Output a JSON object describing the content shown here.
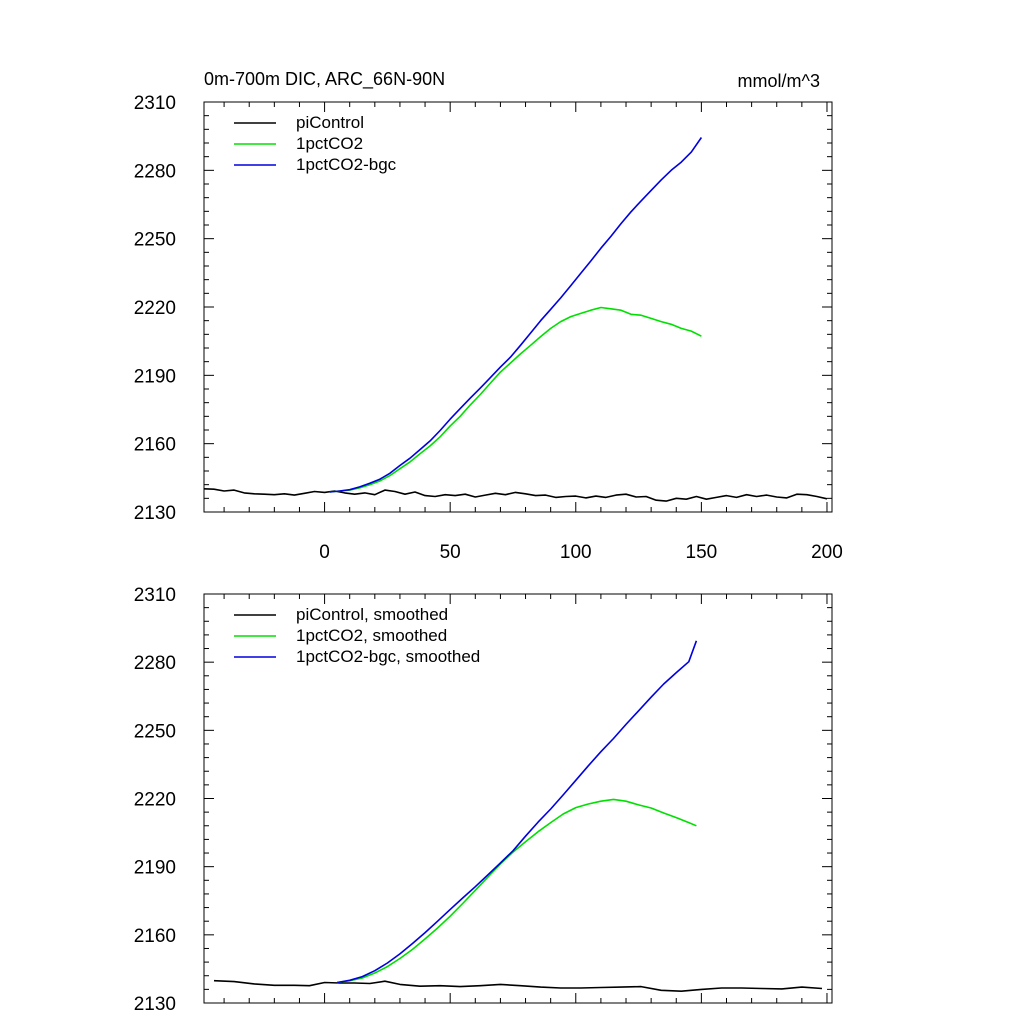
{
  "chart_data": [
    {
      "type": "line",
      "title": "0m-700m DIC, ARC_66N-90N",
      "units_label": "mmol/m^3",
      "xlim": [
        -48,
        202
      ],
      "ylim": [
        2130,
        2310
      ],
      "x_ticks": [
        0,
        50,
        100,
        150,
        200
      ],
      "x_tick_labels": [
        "0",
        "50",
        "100",
        "150",
        "200"
      ],
      "y_ticks": [
        2130,
        2160,
        2190,
        2220,
        2250,
        2280,
        2310
      ],
      "y_tick_labels": [
        "2130",
        "2160",
        "2190",
        "2220",
        "2250",
        "2280",
        "2310"
      ],
      "legend_position": "top-left",
      "series": [
        {
          "name": "piControl",
          "color": "#000000",
          "x": [
            -48,
            -44,
            -40,
            -36,
            -32,
            -28,
            -24,
            -20,
            -16,
            -12,
            -8,
            -4,
            0,
            4,
            8,
            12,
            16,
            20,
            24,
            28,
            32,
            36,
            40,
            44,
            48,
            52,
            56,
            60,
            64,
            68,
            72,
            76,
            80,
            84,
            88,
            92,
            96,
            100,
            104,
            108,
            112,
            116,
            120,
            124,
            128,
            132,
            136,
            140,
            144,
            148,
            152,
            156,
            160,
            164,
            168,
            172,
            176,
            180,
            184,
            188,
            192,
            196,
            200
          ],
          "y": [
            2140.2,
            2140.0,
            2139.2,
            2139.6,
            2138.4,
            2138.0,
            2137.8,
            2137.6,
            2138.0,
            2137.4,
            2138.2,
            2139.0,
            2138.6,
            2139.2,
            2138.4,
            2137.8,
            2138.4,
            2137.6,
            2139.6,
            2139.0,
            2137.8,
            2138.8,
            2137.2,
            2136.8,
            2137.6,
            2137.2,
            2137.8,
            2136.6,
            2137.4,
            2138.2,
            2137.6,
            2138.6,
            2138.0,
            2137.2,
            2137.4,
            2136.4,
            2136.8,
            2137.0,
            2136.2,
            2137.0,
            2136.4,
            2137.4,
            2137.8,
            2136.6,
            2136.8,
            2135.2,
            2134.8,
            2136.0,
            2135.6,
            2136.8,
            2135.6,
            2136.4,
            2137.2,
            2136.4,
            2137.6,
            2136.8,
            2137.4,
            2136.6,
            2136.2,
            2137.8,
            2137.6,
            2136.8,
            2135.8
          ]
        },
        {
          "name": "1pctCO2",
          "color": "#00e000",
          "x": [
            2,
            6,
            10,
            14,
            18,
            22,
            26,
            30,
            34,
            38,
            42,
            46,
            50,
            54,
            58,
            62,
            66,
            70,
            74,
            78,
            82,
            86,
            90,
            94,
            98,
            102,
            106,
            110,
            114,
            118,
            122,
            126,
            130,
            134,
            138,
            142,
            146,
            150
          ],
          "y": [
            2138.8,
            2139.2,
            2139.6,
            2140.6,
            2142.0,
            2143.6,
            2146.0,
            2149.0,
            2152.0,
            2155.6,
            2159.0,
            2163.0,
            2167.8,
            2172.0,
            2177.0,
            2181.6,
            2186.6,
            2191.4,
            2195.4,
            2199.4,
            2203.2,
            2207.0,
            2210.6,
            2213.6,
            2215.8,
            2217.2,
            2218.6,
            2219.8,
            2219.2,
            2218.6,
            2216.8,
            2216.4,
            2215.0,
            2213.6,
            2212.4,
            2210.6,
            2209.4,
            2207.2
          ]
        },
        {
          "name": "1pctCO2-bgc",
          "color": "#0000e0",
          "x": [
            2,
            6,
            10,
            14,
            18,
            22,
            26,
            30,
            34,
            38,
            42,
            46,
            50,
            54,
            58,
            62,
            66,
            70,
            74,
            78,
            82,
            86,
            90,
            94,
            98,
            102,
            106,
            110,
            114,
            118,
            122,
            126,
            130,
            134,
            138,
            142,
            146,
            150
          ],
          "y": [
            2138.8,
            2139.2,
            2139.8,
            2141.0,
            2142.6,
            2144.4,
            2147.0,
            2150.4,
            2153.6,
            2157.4,
            2161.2,
            2165.8,
            2170.8,
            2175.4,
            2180.0,
            2184.4,
            2189.0,
            2193.6,
            2198.0,
            2203.2,
            2208.6,
            2214.0,
            2219.0,
            2224.0,
            2229.4,
            2234.8,
            2240.2,
            2245.8,
            2251.0,
            2256.6,
            2261.8,
            2266.6,
            2271.2,
            2275.8,
            2280.0,
            2283.6,
            2288.0,
            2294.4
          ]
        }
      ]
    },
    {
      "type": "line",
      "title": "",
      "xlim": [
        -48,
        202
      ],
      "ylim": [
        2130,
        2310
      ],
      "x_ticks": [
        0,
        50,
        100,
        150,
        200
      ],
      "y_ticks": [
        2130,
        2160,
        2190,
        2220,
        2250,
        2280,
        2310
      ],
      "y_tick_labels": [
        "2130",
        "2160",
        "2190",
        "2220",
        "2250",
        "2280",
        "2310"
      ],
      "legend_position": "top-left",
      "series": [
        {
          "name": "piControl, smoothed",
          "color": "#000000",
          "x": [
            -44,
            -36,
            -28,
            -20,
            -12,
            -6,
            0,
            6,
            12,
            18,
            24,
            30,
            38,
            46,
            54,
            62,
            70,
            78,
            86,
            94,
            102,
            110,
            118,
            126,
            134,
            142,
            150,
            158,
            166,
            174,
            182,
            190,
            198
          ],
          "y": [
            2139.8,
            2139.4,
            2138.4,
            2137.8,
            2137.8,
            2137.6,
            2139.0,
            2138.8,
            2138.8,
            2138.6,
            2139.6,
            2138.2,
            2137.4,
            2137.6,
            2137.2,
            2137.6,
            2138.2,
            2137.6,
            2137.0,
            2136.6,
            2136.6,
            2136.8,
            2137.0,
            2137.2,
            2135.6,
            2135.2,
            2136.0,
            2136.6,
            2136.6,
            2136.4,
            2136.2,
            2137.0,
            2136.4
          ]
        },
        {
          "name": "1pctCO2, smoothed",
          "color": "#00e000",
          "x": [
            5,
            10,
            15,
            20,
            25,
            30,
            35,
            40,
            45,
            50,
            55,
            60,
            65,
            70,
            75,
            80,
            85,
            90,
            95,
            100,
            105,
            110,
            115,
            120,
            125,
            130,
            135,
            140,
            145,
            148
          ],
          "y": [
            2139.0,
            2139.8,
            2141.0,
            2143.2,
            2146.0,
            2149.6,
            2153.6,
            2158.2,
            2163.0,
            2168.2,
            2173.8,
            2179.6,
            2185.4,
            2191.2,
            2196.4,
            2201.0,
            2205.4,
            2209.4,
            2213.2,
            2216.0,
            2217.6,
            2218.8,
            2219.6,
            2218.8,
            2217.2,
            2215.8,
            2213.6,
            2211.6,
            2209.4,
            2208.0
          ]
        },
        {
          "name": "1pctCO2-bgc, smoothed",
          "color": "#0000e0",
          "x": [
            5,
            10,
            15,
            20,
            25,
            30,
            35,
            40,
            45,
            50,
            55,
            60,
            65,
            70,
            75,
            80,
            85,
            90,
            95,
            100,
            105,
            110,
            115,
            120,
            125,
            130,
            135,
            140,
            145,
            148
          ],
          "y": [
            2139.0,
            2140.0,
            2141.6,
            2144.2,
            2147.6,
            2151.6,
            2156.2,
            2161.0,
            2166.0,
            2171.2,
            2176.2,
            2181.2,
            2186.4,
            2191.6,
            2197.0,
            2203.4,
            2209.6,
            2215.4,
            2221.6,
            2228.0,
            2234.4,
            2240.6,
            2246.4,
            2252.6,
            2258.6,
            2264.6,
            2270.4,
            2275.4,
            2280.2,
            2289.4
          ]
        }
      ]
    }
  ]
}
